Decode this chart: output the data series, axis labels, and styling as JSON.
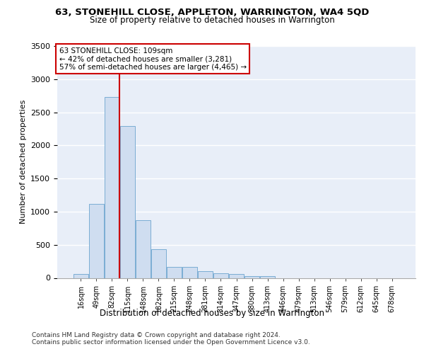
{
  "title": "63, STONEHILL CLOSE, APPLETON, WARRINGTON, WA4 5QD",
  "subtitle": "Size of property relative to detached houses in Warrington",
  "xlabel": "Distribution of detached houses by size in Warrington",
  "ylabel": "Number of detached properties",
  "bar_labels": [
    "16sqm",
    "49sqm",
    "82sqm",
    "115sqm",
    "148sqm",
    "182sqm",
    "215sqm",
    "248sqm",
    "281sqm",
    "314sqm",
    "347sqm",
    "380sqm",
    "413sqm",
    "446sqm",
    "479sqm",
    "513sqm",
    "546sqm",
    "579sqm",
    "612sqm",
    "645sqm",
    "678sqm"
  ],
  "bar_values": [
    55,
    1120,
    2730,
    2290,
    875,
    430,
    165,
    165,
    100,
    65,
    55,
    30,
    30,
    0,
    0,
    0,
    0,
    0,
    0,
    0,
    0
  ],
  "bar_color": "#cfddf0",
  "bar_edge_color": "#7aadd4",
  "vline_color": "#cc0000",
  "vline_x": 2.5,
  "annotation_text": "63 STONEHILL CLOSE: 109sqm\n← 42% of detached houses are smaller (3,281)\n57% of semi-detached houses are larger (4,465) →",
  "annotation_box_edgecolor": "#cc0000",
  "ylim": [
    0,
    3500
  ],
  "yticks": [
    0,
    500,
    1000,
    1500,
    2000,
    2500,
    3000,
    3500
  ],
  "background_color": "#e8eef8",
  "grid_color": "#ffffff",
  "footer": "Contains HM Land Registry data © Crown copyright and database right 2024.\nContains public sector information licensed under the Open Government Licence v3.0."
}
